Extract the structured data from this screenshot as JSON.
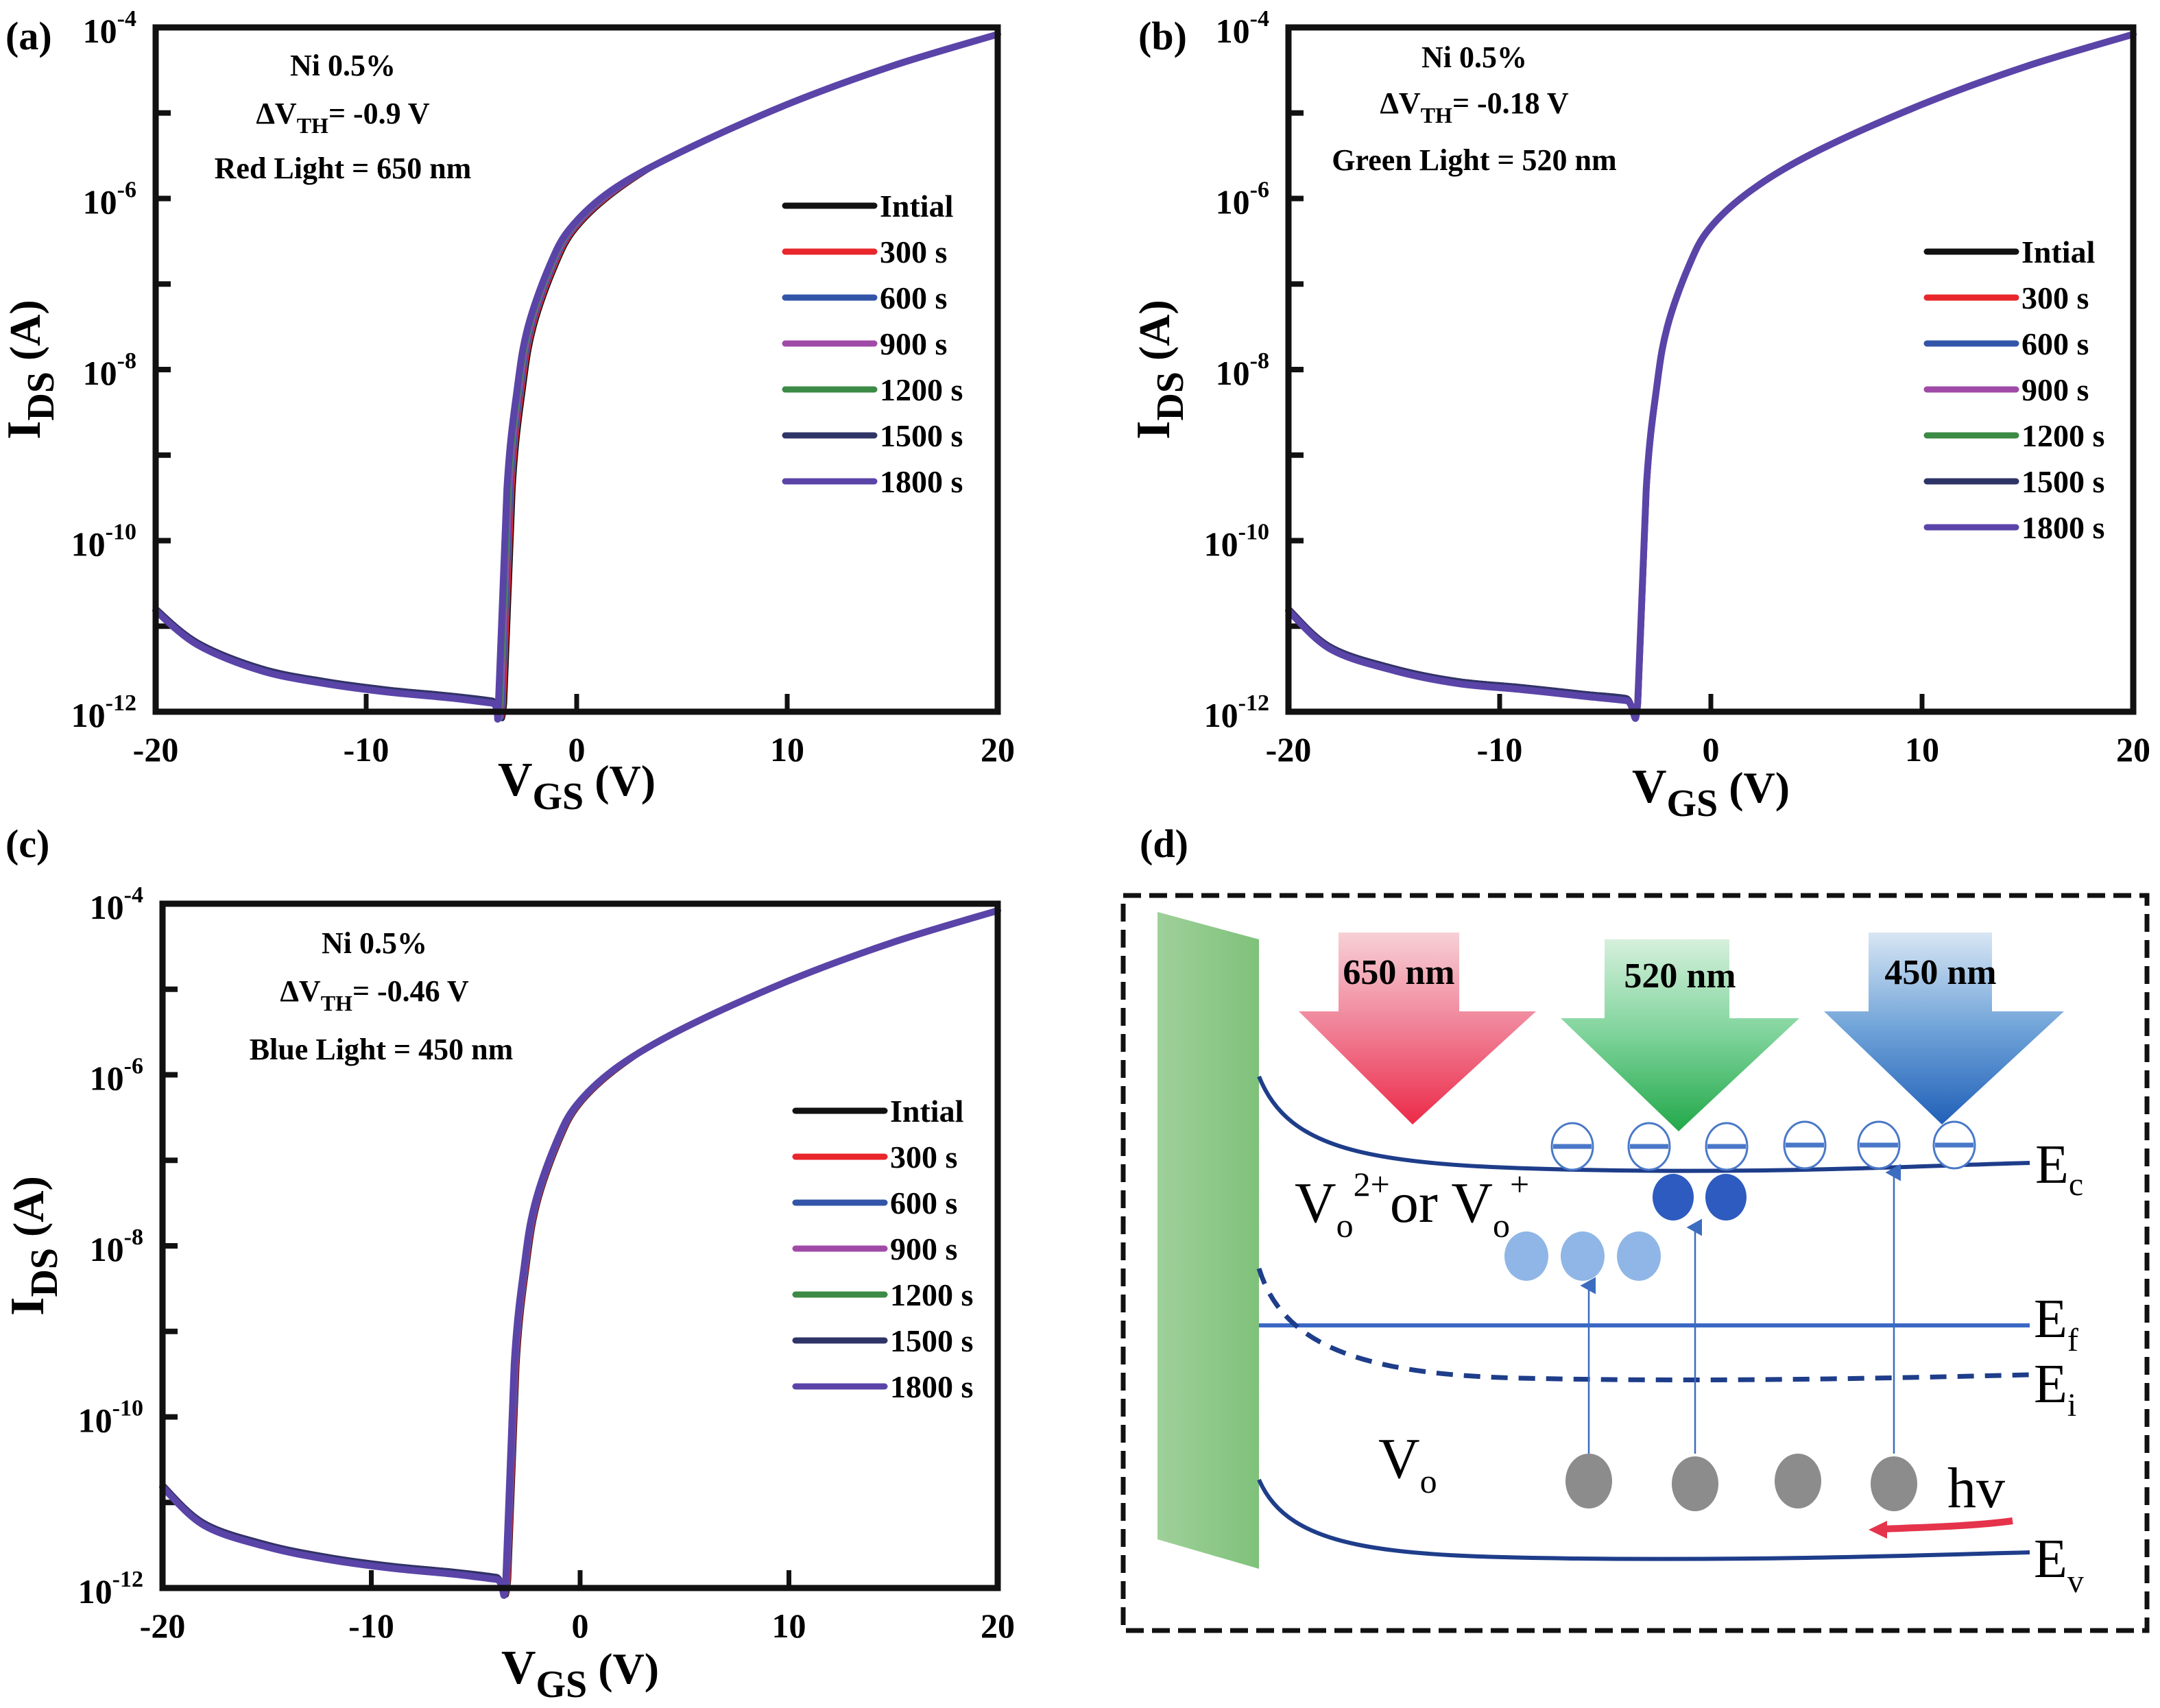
{
  "figure": {
    "panels": [
      "(a)",
      "(b)",
      "(c)",
      "(d)"
    ]
  },
  "legend": {
    "entries": [
      {
        "label": "Intial",
        "color": "#111111"
      },
      {
        "label": "300 s",
        "color": "#e8262b"
      },
      {
        "label": "600 s",
        "color": "#3255a8"
      },
      {
        "label": "900 s",
        "color": "#a04aa8"
      },
      {
        "label": "1200 s",
        "color": "#3b8a45"
      },
      {
        "label": "1500 s",
        "color": "#2e3466"
      },
      {
        "label": "1800 s",
        "color": "#5a44a8"
      }
    ]
  },
  "chart_data": [
    {
      "type": "line",
      "panel": "(a)",
      "title": "",
      "annotation": [
        "Ni 0.5%",
        "ΔV_TH= -0.9 V",
        "Red Light = 650 nm"
      ],
      "xlabel": "V_GS (V)",
      "ylabel": "I_DS (A)",
      "xlim": [
        -20,
        20
      ],
      "ylim": [
        1e-12,
        0.0001
      ],
      "yscale": "log",
      "xticks": [
        -20,
        -10,
        0,
        10,
        20
      ],
      "yticks": [
        "10^-4",
        "10^-6",
        "10^-8",
        "10^-10",
        "10^-12"
      ],
      "legend_position": "center-right",
      "von": -3.3,
      "shift": -0.9,
      "series_names": [
        "Intial",
        "300 s",
        "600 s",
        "900 s",
        "1200 s",
        "1500 s",
        "1800 s"
      ],
      "x": [
        -20,
        -18,
        -15,
        -12,
        -9,
        -6,
        -4,
        -3.4,
        -3.0,
        -2.5,
        -2.0,
        -1.0,
        0,
        2,
        5,
        10,
        15,
        20
      ],
      "log10_y": [
        -10.8,
        -11.2,
        -11.5,
        -11.65,
        -11.75,
        -11.82,
        -11.88,
        -11.9,
        -9.4,
        -8.2,
        -7.5,
        -6.8,
        -6.35,
        -5.9,
        -5.45,
        -4.9,
        -4.45,
        -4.08
      ]
    },
    {
      "type": "line",
      "panel": "(b)",
      "title": "",
      "annotation": [
        "Ni 0.5%",
        "ΔV_TH= -0.18 V",
        "Green Light = 520 nm"
      ],
      "xlabel": "V_GS (V)",
      "ylabel": "I_DS (A)",
      "xlim": [
        -20,
        20
      ],
      "ylim": [
        1e-12,
        0.0001
      ],
      "yscale": "log",
      "xticks": [
        -20,
        -10,
        0,
        10,
        20
      ],
      "yticks": [
        "10^-4",
        "10^-6",
        "10^-8",
        "10^-10",
        "10^-12"
      ],
      "legend_position": "center-right",
      "von": -3.3,
      "shift": -0.18,
      "series_names": [
        "Intial",
        "300 s",
        "600 s",
        "900 s",
        "1200 s",
        "1500 s",
        "1800 s"
      ],
      "x": [
        -20,
        -18,
        -15,
        -12,
        -9,
        -6,
        -4,
        -3.4,
        -3.0,
        -2.5,
        -2.0,
        -1.0,
        0,
        2,
        5,
        10,
        15,
        20
      ],
      "log10_y": [
        -10.8,
        -11.25,
        -11.5,
        -11.65,
        -11.72,
        -11.8,
        -11.85,
        -11.9,
        -9.4,
        -8.2,
        -7.5,
        -6.8,
        -6.35,
        -5.9,
        -5.45,
        -4.9,
        -4.45,
        -4.08
      ]
    },
    {
      "type": "line",
      "panel": "(c)",
      "title": "",
      "annotation": [
        "Ni 0.5%",
        "ΔV_TH= -0.46 V",
        "Blue Light = 450 nm"
      ],
      "xlabel": "V_GS (V)",
      "ylabel": "I_DS (A)",
      "xlim": [
        -20,
        20
      ],
      "ylim": [
        1e-12,
        0.0001
      ],
      "yscale": "log",
      "xticks": [
        -20,
        -10,
        0,
        10,
        20
      ],
      "yticks": [
        "10^-4",
        "10^-6",
        "10^-8",
        "10^-10",
        "10^-12"
      ],
      "legend_position": "center-right",
      "von": -3.3,
      "shift": -0.46,
      "series_names": [
        "Intial",
        "300 s",
        "600 s",
        "900 s",
        "1200 s",
        "1500 s",
        "1800 s"
      ],
      "x": [
        -20,
        -18,
        -15,
        -12,
        -9,
        -6,
        -4,
        -3.4,
        -3.0,
        -2.5,
        -2.0,
        -1.0,
        0,
        2,
        5,
        10,
        15,
        20
      ],
      "log10_y": [
        -10.8,
        -11.25,
        -11.5,
        -11.65,
        -11.75,
        -11.82,
        -11.88,
        -11.9,
        -9.4,
        -8.2,
        -7.5,
        -6.8,
        -6.35,
        -5.9,
        -5.45,
        -4.9,
        -4.45,
        -4.08
      ]
    }
  ],
  "diagram": {
    "title": "(d)",
    "arrows": [
      {
        "label": "650 nm",
        "color": "#ee3350"
      },
      {
        "label": "520 nm",
        "color": "#33b35a"
      },
      {
        "label": "450 nm",
        "color": "#2d6fc0"
      }
    ],
    "levels": {
      "ec": "E",
      "ec_sub": "c",
      "ef": "E",
      "ef_sub": "f",
      "ei": "E",
      "ei_sub": "i",
      "ev": "E",
      "ev_sub": "v"
    },
    "labels": {
      "vo_ion_main": "V",
      "vo_ion_sub": "o",
      "vo_ion_sup": "2+",
      "vo_ion_or": "or V",
      "vo_ion_sub2": "o",
      "vo_ion_sup2": "+",
      "vo_main": "V",
      "vo_sub": "o",
      "hv": "hv"
    }
  }
}
